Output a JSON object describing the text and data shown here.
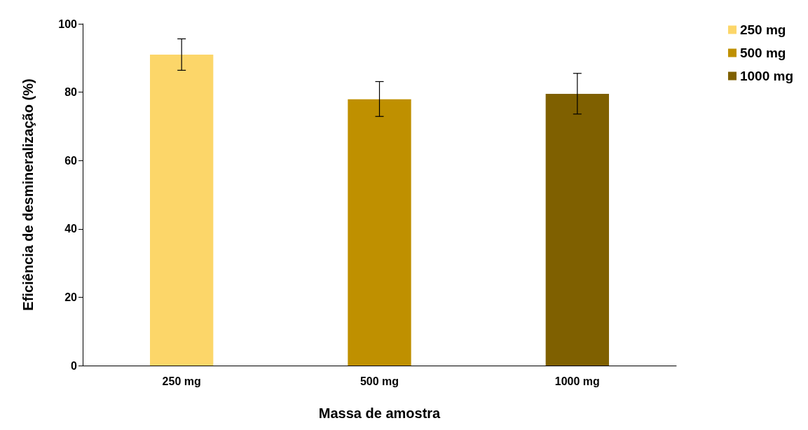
{
  "chart_data": {
    "type": "bar",
    "xlabel": "Massa de amostra",
    "ylabel": "Eficiência de desmineralização (%)",
    "categories": [
      "250 mg",
      "500 mg",
      "1000 mg"
    ],
    "series": [
      {
        "name": "250 mg",
        "color": "#fcd669",
        "values": [
          91,
          null,
          null
        ],
        "errors": [
          [
            86.4,
            95.6
          ],
          null,
          null
        ]
      },
      {
        "name": "500 mg",
        "color": "#bf9000",
        "values": [
          null,
          77.9,
          null
        ],
        "errors": [
          null,
          [
            72.9,
            83.1
          ],
          null
        ]
      },
      {
        "name": "1000 mg",
        "color": "#7f6000",
        "values": [
          null,
          null,
          79.5
        ],
        "errors": [
          null,
          null,
          [
            73.6,
            85.5
          ]
        ]
      }
    ],
    "ylim": [
      0,
      100
    ],
    "yticks": [
      0,
      20,
      40,
      60,
      80,
      100
    ],
    "grid": false,
    "legend": "top right"
  }
}
